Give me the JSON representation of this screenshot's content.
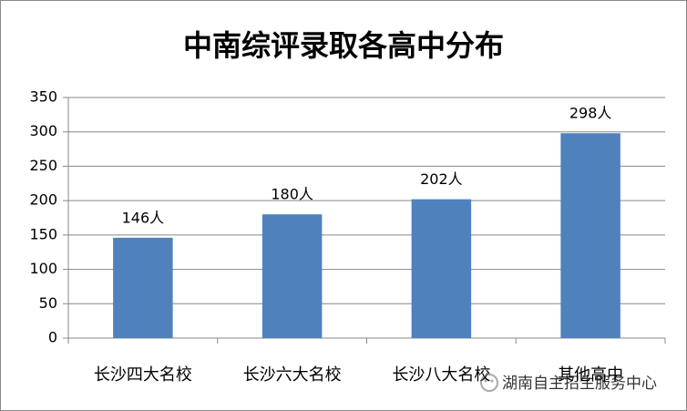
{
  "chart_data": {
    "type": "bar",
    "title": "中南综评录取各高中分布",
    "categories": [
      "长沙四大名校",
      "长沙六大名校",
      "长沙八大名校",
      "其他高中"
    ],
    "values": [
      146,
      180,
      202,
      298
    ],
    "value_labels": [
      "146人",
      "180人",
      "202人",
      "298人"
    ],
    "color": "#4f81bd",
    "ylim": [
      0,
      350
    ],
    "yticks": [
      0,
      50,
      100,
      150,
      200,
      250,
      300,
      350
    ],
    "grid": true,
    "watermark": "湖南自主招生服务中心"
  }
}
